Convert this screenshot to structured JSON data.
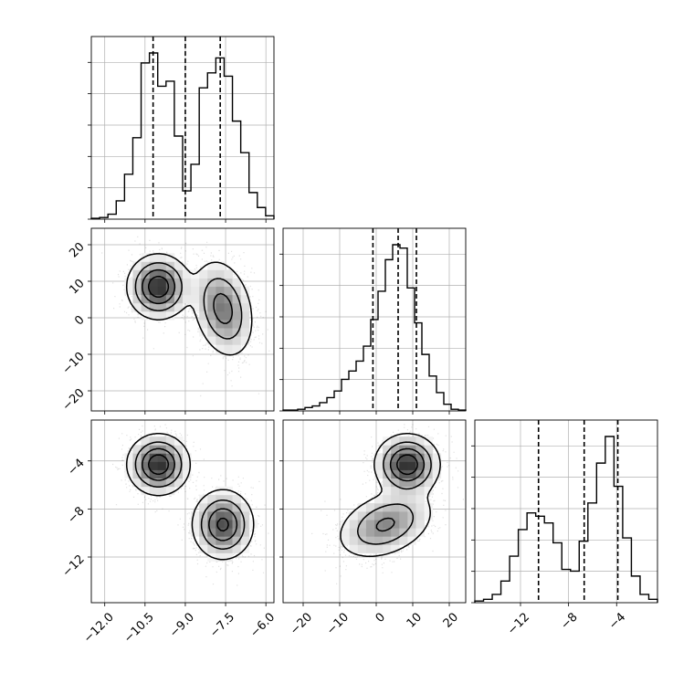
{
  "chart_data": {
    "type": "corner",
    "grid": true,
    "histograms": [
      {
        "parameter_index": 0,
        "type": "step-histogram",
        "range": [
          -12.5,
          -5.7
        ],
        "quantiles": [
          -10.2,
          -9.0,
          -7.7
        ],
        "counts": [
          0.5,
          1,
          3,
          11,
          27,
          49,
          94,
          100,
          80,
          83,
          50,
          17,
          33,
          79,
          88,
          97,
          86,
          59,
          40,
          16,
          7,
          2
        ]
      },
      {
        "parameter_index": 1,
        "type": "step-histogram",
        "range": [
          -25.5,
          24.5
        ],
        "quantiles": [
          -0.9,
          6.0,
          11.0
        ],
        "counts": [
          0.5,
          0.5,
          1,
          2,
          3,
          5,
          8,
          12,
          19,
          24,
          30,
          39,
          55,
          72,
          91,
          100,
          98,
          74,
          53,
          34,
          21,
          11,
          4,
          1,
          0.5
        ]
      },
      {
        "parameter_index": 2,
        "type": "step-histogram",
        "range": [
          -15.8,
          -0.6
        ],
        "quantiles": [
          -10.5,
          -6.7,
          -3.9
        ],
        "counts": [
          1,
          2,
          5,
          13,
          28,
          44,
          54,
          52,
          48,
          36,
          20,
          19,
          37,
          60,
          84,
          100,
          70,
          39,
          16,
          5,
          2
        ]
      }
    ],
    "panels_2d": [
      {
        "x_param": 0,
        "y_param": 1,
        "x_range": [
          -12.5,
          -5.7
        ],
        "y_range": [
          -25.5,
          24.5
        ],
        "components": [
          {
            "mx": -10.0,
            "my": 8.5,
            "sx": 0.55,
            "sy": 4.2,
            "rho": 0.0,
            "weight": 0.5
          },
          {
            "mx": -7.6,
            "my": 2.5,
            "sx": 0.55,
            "sy": 6.5,
            "rho": -0.25,
            "weight": 0.5
          }
        ]
      },
      {
        "x_param": 0,
        "y_param": 2,
        "x_range": [
          -12.5,
          -5.7
        ],
        "y_range": [
          -15.8,
          -0.6
        ],
        "components": [
          {
            "mx": -10.0,
            "my": -4.3,
            "sx": 0.55,
            "sy": 1.2,
            "rho": 0.0,
            "weight": 0.5
          },
          {
            "mx": -7.6,
            "my": -9.3,
            "sx": 0.55,
            "sy": 1.4,
            "rho": 0.0,
            "weight": 0.5
          }
        ]
      },
      {
        "x_param": 1,
        "y_param": 2,
        "x_range": [
          -25.5,
          24.5
        ],
        "y_range": [
          -15.8,
          -0.6
        ],
        "components": [
          {
            "mx": 8.5,
            "my": -4.3,
            "sx": 4.2,
            "sy": 1.2,
            "rho": 0.0,
            "weight": 0.5
          },
          {
            "mx": 2.5,
            "my": -9.3,
            "sx": 6.5,
            "sy": 1.4,
            "rho": 0.35,
            "weight": 0.5
          }
        ]
      }
    ],
    "tick_labels": {
      "x0": [
        {
          "value": -12.0,
          "label": "−12.0"
        },
        {
          "value": -10.5,
          "label": "−10.5"
        },
        {
          "value": -9.0,
          "label": "−9.0"
        },
        {
          "value": -7.5,
          "label": "−7.5"
        },
        {
          "value": -6.0,
          "label": "−6.0"
        }
      ],
      "x1": [
        {
          "value": -20,
          "label": "−20"
        },
        {
          "value": -10,
          "label": "−10"
        },
        {
          "value": 0,
          "label": "0"
        },
        {
          "value": 10,
          "label": "10"
        },
        {
          "value": 20,
          "label": "20"
        }
      ],
      "x2": [
        {
          "value": -12,
          "label": "−12"
        },
        {
          "value": -8,
          "label": "−8"
        },
        {
          "value": -4,
          "label": "−4"
        }
      ],
      "y1": [
        {
          "value": 20,
          "label": "20"
        },
        {
          "value": 10,
          "label": "10"
        },
        {
          "value": 0,
          "label": "0"
        },
        {
          "value": -10,
          "label": "−10"
        },
        {
          "value": -20,
          "label": "−20"
        }
      ],
      "y2": [
        {
          "value": -4,
          "label": "−4"
        },
        {
          "value": -8,
          "label": "−8"
        },
        {
          "value": -12,
          "label": "−12"
        }
      ]
    },
    "colors": {
      "line": "#000000",
      "grid": "#b0b0b0",
      "scatter": "#000000",
      "background": "#ffffff"
    }
  }
}
